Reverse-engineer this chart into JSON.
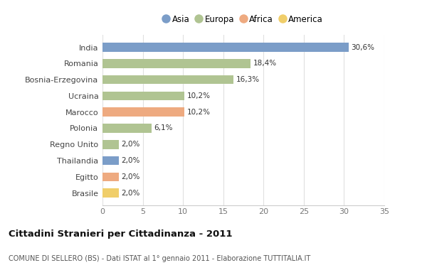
{
  "categories": [
    "India",
    "Romania",
    "Bosnia-Erzegovina",
    "Ucraina",
    "Marocco",
    "Polonia",
    "Regno Unito",
    "Thailandia",
    "Egitto",
    "Brasile"
  ],
  "values": [
    30.6,
    18.4,
    16.3,
    10.2,
    10.2,
    6.1,
    2.0,
    2.0,
    2.0,
    2.0
  ],
  "labels": [
    "30,6%",
    "18,4%",
    "16,3%",
    "10,2%",
    "10,2%",
    "6,1%",
    "2,0%",
    "2,0%",
    "2,0%",
    "2,0%"
  ],
  "colors": [
    "#7b9dc8",
    "#b0c492",
    "#b0c492",
    "#b0c492",
    "#eeaa80",
    "#b0c492",
    "#b0c492",
    "#7b9dc8",
    "#eeaa80",
    "#f0ce6a"
  ],
  "legend": [
    {
      "label": "Asia",
      "color": "#7b9dc8"
    },
    {
      "label": "Europa",
      "color": "#b0c492"
    },
    {
      "label": "Africa",
      "color": "#eeaa80"
    },
    {
      "label": "America",
      "color": "#f0ce6a"
    }
  ],
  "title": "Cittadini Stranieri per Cittadinanza - 2011",
  "subtitle": "COMUNE DI SELLERO (BS) - Dati ISTAT al 1° gennaio 2011 - Elaborazione TUTTITALIA.IT",
  "xlim": [
    0,
    35
  ],
  "xticks": [
    0,
    5,
    10,
    15,
    20,
    25,
    30,
    35
  ],
  "background_color": "#ffffff",
  "grid_color": "#e0e0e0",
  "bar_height": 0.55,
  "figsize": [
    6.0,
    3.8
  ],
  "dpi": 100
}
